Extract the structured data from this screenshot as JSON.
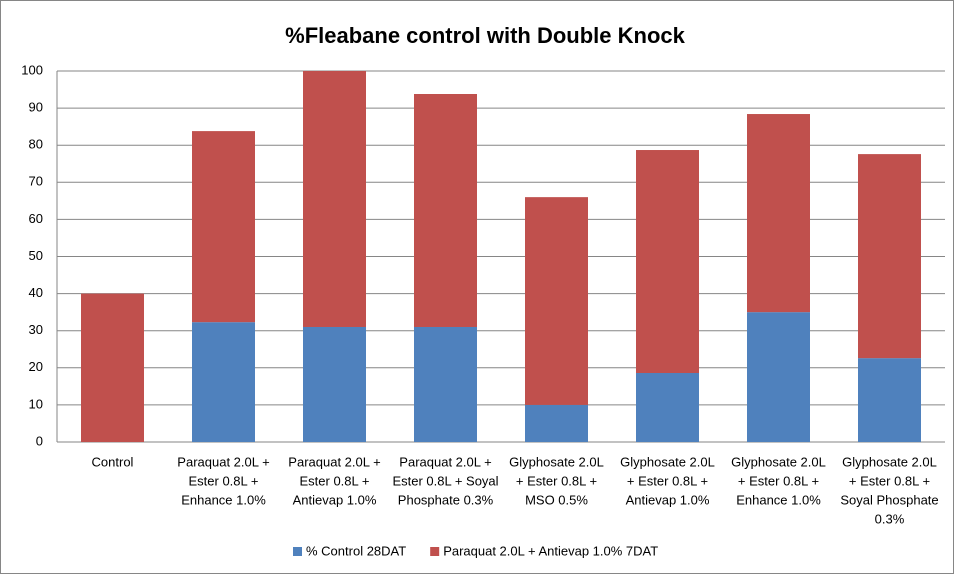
{
  "chart_data": {
    "type": "stacked_bar",
    "title": "%Fleabane control with Double Knock",
    "categories": [
      [
        "Control"
      ],
      [
        "Paraquat 2.0L +",
        "Ester 0.8L +",
        "Enhance 1.0%"
      ],
      [
        "Paraquat 2.0L +",
        "Ester 0.8L +",
        "Antievap 1.0%"
      ],
      [
        "Paraquat 2.0L +",
        "Ester 0.8L + Soyal",
        "Phosphate 0.3%"
      ],
      [
        "Glyphosate 2.0L",
        "+ Ester 0.8L +",
        "MSO 0.5%"
      ],
      [
        "Glyphosate 2.0L",
        "+ Ester 0.8L +",
        "Antievap 1.0%"
      ],
      [
        "Glyphosate 2.0L",
        "+ Ester 0.8L +",
        "Enhance 1.0%"
      ],
      [
        "Glyphosate 2.0L",
        "+ Ester 0.8L +",
        "Soyal Phosphate",
        "0.3%"
      ]
    ],
    "series": [
      {
        "name": "% Control 28DAT",
        "color": "#4f81bd",
        "values": [
          0,
          32.3,
          31,
          31,
          10,
          18.6,
          35,
          22.6
        ]
      },
      {
        "name": "Paraquat 2.0L + Antievap 1.0% 7DAT",
        "color": "#c0504d",
        "values": [
          40,
          51.5,
          69,
          62.8,
          56,
          60.1,
          53.4,
          55
        ]
      }
    ],
    "ylim": [
      0,
      100
    ],
    "yticks": [
      0,
      10,
      20,
      30,
      40,
      50,
      60,
      70,
      80,
      90,
      100
    ],
    "grid": true,
    "legend": "bottom"
  }
}
